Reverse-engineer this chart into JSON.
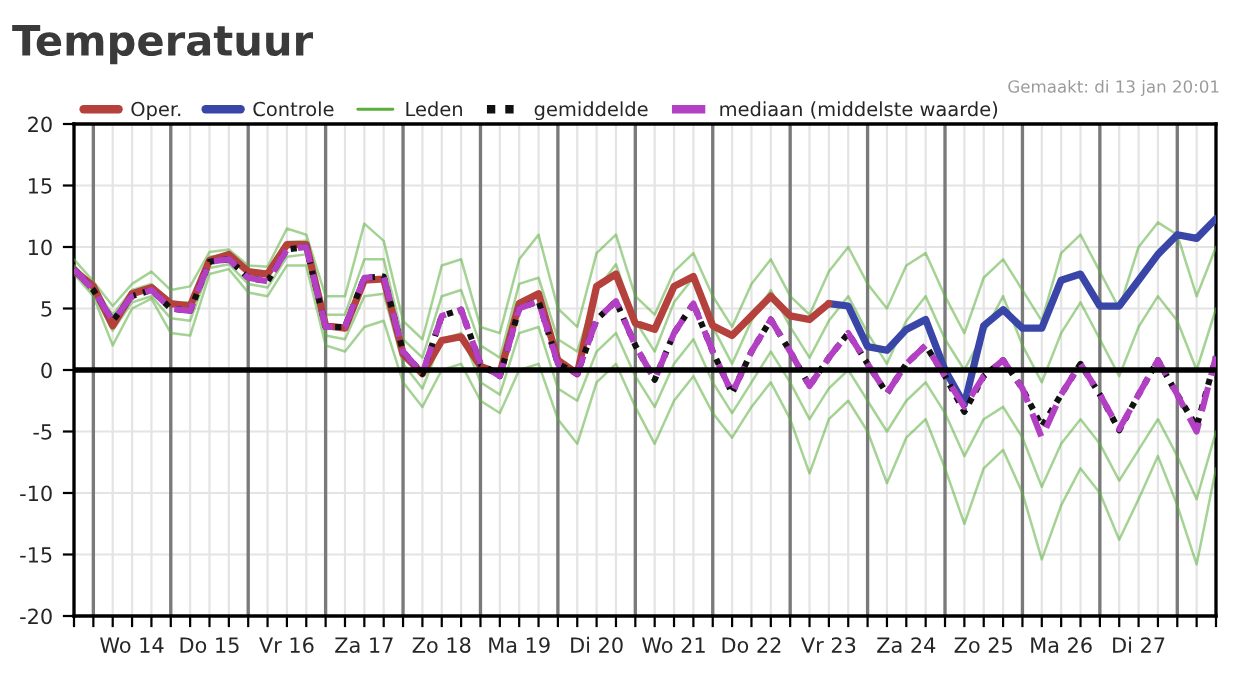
{
  "chart_data": {
    "type": "line",
    "title": "Temperatuur",
    "annotations": [
      "Gemaakt: di 13 jan 20:01"
    ],
    "categories": [
      null,
      null,
      null,
      "Wo 14",
      null,
      null,
      null,
      "Do 15",
      null,
      null,
      null,
      "Vr 16",
      null,
      null,
      null,
      "Za 17",
      null,
      null,
      null,
      "Zo 18",
      null,
      null,
      null,
      "Ma 19",
      null,
      null,
      null,
      "Di 20",
      null,
      null,
      null,
      "Wo 21",
      null,
      null,
      null,
      "Do 22",
      null,
      null,
      null,
      "Vr 23",
      null,
      null,
      null,
      "Za 24",
      null,
      null,
      null,
      "Zo 25",
      null,
      null,
      null,
      "Ma 26",
      null,
      null,
      null,
      "Di 27",
      null,
      null,
      null,
      null
    ],
    "ylim": [
      -20,
      20
    ],
    "yticks": [
      -20,
      -15,
      -10,
      -5,
      0,
      5,
      10,
      15,
      20
    ],
    "grid": true,
    "legend": "top",
    "marker": "none",
    "ref_lines": [
      {
        "axis": "y",
        "value": 0,
        "color": "#000000"
      }
    ],
    "series": [
      {
        "name": "Leden",
        "color": "#5aae3c",
        "line_style": "solid",
        "values": [
          9.0,
          7.2,
          5.2,
          7.0,
          8.0,
          6.5,
          6.8,
          9.6,
          9.8,
          8.5,
          8.4,
          11.5,
          11.0,
          6.0,
          6.0,
          11.9,
          10.5,
          4.0,
          2.5,
          8.5,
          9.0,
          3.5,
          3.0,
          9.0,
          11.0,
          5.0,
          3.5,
          9.5,
          11.0,
          6.0,
          4.5,
          8.0,
          9.5,
          6.0,
          3.5,
          7.0,
          9.0,
          6.0,
          4.5,
          8.0,
          10.0,
          7.0,
          5.0,
          8.5,
          9.5,
          6.0,
          3.0,
          7.5,
          9.0,
          6.5,
          4.0,
          9.5,
          11.0,
          8.0,
          5.0,
          10.0,
          12.0,
          11.0,
          6.0,
          10.0
        ]
      },
      {
        "color": "#5aae3c",
        "line_style": "solid",
        "values": [
          7.8,
          6.0,
          2.0,
          5.0,
          5.8,
          3.0,
          2.8,
          7.8,
          8.2,
          6.3,
          6.0,
          8.5,
          8.5,
          2.0,
          1.5,
          3.5,
          4.0,
          -1.0,
          -3.0,
          0.0,
          0.5,
          -2.5,
          -3.5,
          0.0,
          0.5,
          -4.0,
          -6.0,
          -1.0,
          0.5,
          -3.0,
          -6.0,
          -2.5,
          -0.5,
          -3.5,
          -5.5,
          -3.0,
          -1.0,
          -4.0,
          -8.4,
          -4.0,
          -2.5,
          -5.0,
          -9.2,
          -5.5,
          -4.0,
          -8.0,
          -12.5,
          -8.0,
          -6.5,
          -10.0,
          -15.4,
          -11.0,
          -8.0,
          -10.0,
          -13.8,
          -10.5,
          -7.0,
          -11.0,
          -15.8,
          -8.0
        ]
      },
      {
        "color": "#5aae3c",
        "line_style": "solid",
        "values": [
          8.5,
          6.8,
          4.5,
          6.5,
          7.0,
          5.5,
          5.5,
          9.2,
          9.4,
          8.0,
          7.8,
          10.4,
          10.5,
          4.5,
          4.5,
          9.0,
          9.0,
          2.5,
          1.0,
          6.0,
          6.5,
          2.0,
          1.0,
          7.0,
          7.5,
          2.5,
          1.5,
          6.5,
          8.6,
          4.0,
          1.5,
          5.5,
          7.5,
          3.5,
          0.5,
          4.0,
          6.5,
          3.5,
          1.0,
          4.0,
          6.0,
          3.0,
          0.5,
          4.0,
          6.0,
          2.5,
          0.0,
          3.0,
          6.0,
          2.0,
          -1.0,
          3.0,
          5.5,
          2.5,
          -0.5,
          3.5,
          6.0,
          4.0,
          0.0,
          5.0
        ]
      },
      {
        "color": "#5aae3c",
        "line_style": "solid",
        "values": [
          8.0,
          6.2,
          3.2,
          5.5,
          6.0,
          4.2,
          4.0,
          8.3,
          8.6,
          7.0,
          6.7,
          9.2,
          9.4,
          2.8,
          2.5,
          6.0,
          6.2,
          0.5,
          -1.5,
          2.5,
          3.0,
          -1.0,
          -2.0,
          3.0,
          3.5,
          -1.5,
          -2.5,
          1.5,
          3.0,
          -0.5,
          -3.0,
          0.5,
          2.5,
          -1.0,
          -3.5,
          -1.0,
          1.5,
          -1.0,
          -4.0,
          -1.5,
          0.0,
          -2.5,
          -5.0,
          -2.5,
          -1.0,
          -3.5,
          -7.0,
          -4.0,
          -3.0,
          -5.5,
          -9.5,
          -6.0,
          -4.0,
          -6.0,
          -9.0,
          -6.5,
          -4.0,
          -7.0,
          -10.5,
          -5.0
        ]
      },
      {
        "name": "Controle",
        "color": "#3a45a8",
        "line_style": "solid",
        "values": [
          null,
          null,
          null,
          null,
          null,
          null,
          null,
          null,
          null,
          null,
          null,
          null,
          null,
          null,
          null,
          null,
          null,
          null,
          null,
          null,
          null,
          null,
          null,
          null,
          null,
          null,
          null,
          null,
          null,
          null,
          null,
          null,
          null,
          null,
          null,
          null,
          null,
          null,
          null,
          5.4,
          5.2,
          1.9,
          1.6,
          3.3,
          4.1,
          0.0,
          -2.8,
          3.6,
          4.9,
          3.4,
          3.4,
          7.3,
          7.8,
          5.2,
          5.2,
          7.3,
          9.4,
          11.0,
          10.7,
          12.3
        ]
      },
      {
        "name": "Oper.",
        "color": "#b5413c",
        "line_style": "solid",
        "values": [
          8.1,
          6.8,
          3.6,
          6.2,
          6.7,
          5.4,
          5.2,
          8.9,
          9.4,
          8.0,
          7.8,
          10.2,
          10.2,
          3.6,
          3.4,
          7.3,
          7.4,
          1.3,
          -0.3,
          2.4,
          2.7,
          0.3,
          -0.3,
          5.4,
          6.2,
          0.8,
          -0.3,
          6.8,
          7.8,
          3.8,
          3.3,
          6.8,
          7.6,
          3.6,
          2.8,
          4.4,
          6.0,
          4.4,
          4.1,
          5.4,
          null,
          null,
          null,
          null,
          null,
          null,
          null,
          null,
          null,
          null,
          null,
          null,
          null,
          null,
          null,
          null,
          null,
          null,
          null,
          null
        ]
      },
      {
        "name": "gemiddelde",
        "color": "#111111",
        "line_style": "dotted",
        "values": [
          8.2,
          6.5,
          4.0,
          6.0,
          6.5,
          5.0,
          4.8,
          8.8,
          9.0,
          7.5,
          7.2,
          9.8,
          10.0,
          3.5,
          3.5,
          7.5,
          7.6,
          1.5,
          -0.3,
          4.4,
          4.9,
          0.5,
          -0.5,
          5.0,
          5.6,
          0.5,
          -0.3,
          4.1,
          5.6,
          2.0,
          -0.8,
          3.0,
          5.4,
          1.5,
          -1.9,
          1.5,
          4.1,
          1.5,
          -1.3,
          1.0,
          3.0,
          0.5,
          -1.9,
          0.5,
          2.0,
          -0.5,
          -3.4,
          -0.5,
          0.8,
          -1.5,
          -4.6,
          -2.0,
          0.5,
          -2.0,
          -4.9,
          -2.0,
          0.8,
          -2.0,
          -4.6,
          1.1
        ]
      },
      {
        "name": "mediaan (middelste waarde)",
        "color": "#b23fc4",
        "line_style": "dashed",
        "values": [
          8.2,
          6.5,
          4.0,
          6.0,
          6.5,
          5.0,
          4.8,
          8.8,
          9.0,
          7.5,
          7.2,
          9.8,
          10.0,
          3.5,
          3.5,
          7.5,
          7.6,
          1.5,
          -0.3,
          4.4,
          4.9,
          0.5,
          -0.5,
          5.0,
          5.6,
          0.5,
          -0.3,
          4.1,
          5.6,
          2.0,
          -0.8,
          3.0,
          5.4,
          1.5,
          -1.9,
          1.5,
          4.1,
          1.5,
          -1.3,
          1.0,
          3.0,
          0.5,
          -1.9,
          0.5,
          2.0,
          -0.5,
          -3.0,
          -0.5,
          0.8,
          -1.5,
          -5.5,
          -2.0,
          0.5,
          -2.0,
          -4.8,
          -2.0,
          0.8,
          -2.0,
          -5.0,
          1.1
        ]
      }
    ]
  }
}
